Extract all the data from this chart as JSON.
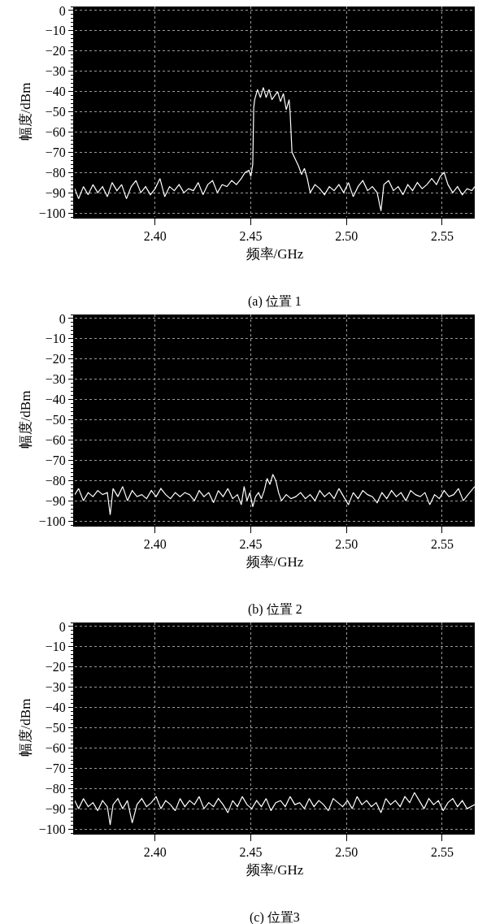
{
  "chart_data": [
    {
      "type": "line",
      "xlabel": "频率/GHz",
      "ylabel": "幅度/dBm",
      "annotations": [
        "(a) 位置 1"
      ],
      "xlim": [
        2.358,
        2.567
      ],
      "ylim": [
        -102,
        2
      ],
      "xticks": [
        {
          "value": 2.4,
          "label": "2.40"
        },
        {
          "value": 2.45,
          "label": "2.45"
        },
        {
          "value": 2.5,
          "label": "2.50"
        },
        {
          "value": 2.55,
          "label": "2.55"
        }
      ],
      "yticks": [
        0,
        -10,
        -20,
        -30,
        -40,
        -50,
        -60,
        -70,
        -80,
        -90,
        -100
      ],
      "grid": true,
      "x": [
        2.358,
        2.36,
        2.3625,
        2.365,
        2.3675,
        2.37,
        2.3725,
        2.375,
        2.3775,
        2.38,
        2.3825,
        2.385,
        2.3875,
        2.39,
        2.3925,
        2.395,
        2.3975,
        2.4,
        2.4025,
        2.405,
        2.4075,
        2.41,
        2.4125,
        2.415,
        2.4175,
        2.42,
        2.4225,
        2.425,
        2.4275,
        2.43,
        2.4325,
        2.435,
        2.4375,
        2.44,
        2.4425,
        2.445,
        2.447,
        2.449,
        2.45,
        2.451,
        2.4515,
        2.452,
        2.4535,
        2.455,
        2.4565,
        2.458,
        2.4595,
        2.461,
        2.4625,
        2.464,
        2.4655,
        2.467,
        2.4685,
        2.47,
        2.4705,
        2.4715,
        2.473,
        2.475,
        2.4765,
        2.478,
        2.4795,
        2.481,
        2.4835,
        2.486,
        2.4885,
        2.491,
        2.4935,
        2.496,
        2.4985,
        2.501,
        2.5035,
        2.506,
        2.5085,
        2.511,
        2.5135,
        2.516,
        2.518,
        2.5195,
        2.522,
        2.5245,
        2.527,
        2.5295,
        2.532,
        2.5345,
        2.537,
        2.5395,
        2.542,
        2.5445,
        2.547,
        2.549,
        2.551,
        2.553,
        2.5555,
        2.558,
        2.5605,
        2.563,
        2.5655,
        2.567
      ],
      "series": [
        {
          "color": "#ffffff",
          "values": [
            -88,
            -93,
            -87,
            -91,
            -86,
            -90,
            -87,
            -92,
            -85,
            -89,
            -86,
            -93,
            -87,
            -84,
            -90,
            -87,
            -91,
            -88,
            -83,
            -92,
            -87,
            -89,
            -86,
            -90,
            -88,
            -89,
            -85,
            -91,
            -86,
            -84,
            -90,
            -86,
            -87,
            -84,
            -86,
            -83,
            -80,
            -79,
            -82,
            -76,
            -48,
            -44,
            -39,
            -43,
            -38,
            -43,
            -39,
            -44,
            -42,
            -40,
            -45,
            -41,
            -49,
            -44,
            -50,
            -70,
            -73,
            -77,
            -81,
            -78,
            -83,
            -90,
            -86,
            -88,
            -91,
            -87,
            -89,
            -86,
            -90,
            -85,
            -92,
            -87,
            -84,
            -89,
            -87,
            -90,
            -99,
            -86,
            -84,
            -89,
            -87,
            -91,
            -86,
            -89,
            -85,
            -88,
            -86,
            -83,
            -86,
            -82,
            -80,
            -86,
            -90,
            -87,
            -91,
            -88,
            -89,
            -87
          ]
        }
      ]
    },
    {
      "type": "line",
      "xlabel": "频率/GHz",
      "ylabel": "幅度/dBm",
      "annotations": [
        "(b) 位置 2"
      ],
      "xlim": [
        2.358,
        2.567
      ],
      "ylim": [
        -102,
        2
      ],
      "xticks": [
        {
          "value": 2.4,
          "label": "2.40"
        },
        {
          "value": 2.45,
          "label": "2.45"
        },
        {
          "value": 2.5,
          "label": "2.50"
        },
        {
          "value": 2.55,
          "label": "2.55"
        }
      ],
      "yticks": [
        0,
        -10,
        -20,
        -30,
        -40,
        -50,
        -60,
        -70,
        -80,
        -90,
        -100
      ],
      "grid": true,
      "x": [
        2.358,
        2.36,
        2.3625,
        2.365,
        2.3675,
        2.37,
        2.3725,
        2.375,
        2.3765,
        2.378,
        2.3805,
        2.383,
        2.3855,
        2.388,
        2.3905,
        2.393,
        2.3955,
        2.398,
        2.4005,
        2.403,
        2.4055,
        2.408,
        2.4105,
        2.413,
        2.4155,
        2.418,
        2.4205,
        2.423,
        2.4255,
        2.428,
        2.4305,
        2.433,
        2.4355,
        2.438,
        2.4405,
        2.443,
        2.445,
        2.4465,
        2.448,
        2.4495,
        2.451,
        2.4525,
        2.454,
        2.4555,
        2.457,
        2.4585,
        2.46,
        2.4615,
        2.463,
        2.4645,
        2.466,
        2.4685,
        2.471,
        2.4735,
        2.476,
        2.4785,
        2.481,
        2.4835,
        2.486,
        2.4885,
        2.491,
        2.4935,
        2.496,
        2.4985,
        2.501,
        2.5035,
        2.506,
        2.5085,
        2.511,
        2.5135,
        2.516,
        2.5185,
        2.521,
        2.5235,
        2.526,
        2.5285,
        2.531,
        2.5335,
        2.536,
        2.5385,
        2.541,
        2.5435,
        2.546,
        2.5485,
        2.551,
        2.5535,
        2.556,
        2.5585,
        2.561,
        2.5635,
        2.567
      ],
      "series": [
        {
          "color": "#ffffff",
          "values": [
            -87,
            -84,
            -90,
            -86,
            -88,
            -85,
            -87,
            -86,
            -97,
            -84,
            -88,
            -83,
            -90,
            -85,
            -88,
            -87,
            -89,
            -85,
            -88,
            -84,
            -87,
            -89,
            -86,
            -88,
            -86,
            -87,
            -90,
            -85,
            -88,
            -86,
            -91,
            -85,
            -88,
            -84,
            -89,
            -87,
            -92,
            -83,
            -90,
            -86,
            -93,
            -88,
            -86,
            -89,
            -85,
            -79,
            -82,
            -77,
            -80,
            -86,
            -90,
            -87,
            -89,
            -88,
            -86,
            -89,
            -87,
            -90,
            -85,
            -88,
            -86,
            -89,
            -84,
            -88,
            -92,
            -86,
            -89,
            -85,
            -87,
            -88,
            -91,
            -86,
            -89,
            -85,
            -88,
            -86,
            -90,
            -85,
            -87,
            -88,
            -86,
            -92,
            -87,
            -89,
            -85,
            -88,
            -87,
            -84,
            -90,
            -87,
            -83
          ]
        }
      ]
    },
    {
      "type": "line",
      "xlabel": "频率/GHz",
      "ylabel": "幅度/dBm",
      "annotations": [
        "(c) 位置3"
      ],
      "xlim": [
        2.358,
        2.567
      ],
      "ylim": [
        -102,
        2
      ],
      "xticks": [
        {
          "value": 2.4,
          "label": "2.40"
        },
        {
          "value": 2.45,
          "label": "2.45"
        },
        {
          "value": 2.5,
          "label": "2.50"
        },
        {
          "value": 2.55,
          "label": "2.55"
        }
      ],
      "yticks": [
        0,
        -10,
        -20,
        -30,
        -40,
        -50,
        -60,
        -70,
        -80,
        -90,
        -100
      ],
      "grid": true,
      "x": [
        2.358,
        2.36,
        2.3625,
        2.365,
        2.3675,
        2.37,
        2.3725,
        2.375,
        2.3765,
        2.378,
        2.3805,
        2.383,
        2.3855,
        2.388,
        2.3905,
        2.393,
        2.3955,
        2.398,
        2.4005,
        2.403,
        2.4055,
        2.408,
        2.4105,
        2.413,
        2.4155,
        2.418,
        2.4205,
        2.423,
        2.4255,
        2.428,
        2.4305,
        2.433,
        2.4355,
        2.438,
        2.4405,
        2.443,
        2.4455,
        2.448,
        2.4505,
        2.453,
        2.4555,
        2.458,
        2.4605,
        2.463,
        2.4655,
        2.468,
        2.4705,
        2.473,
        2.4755,
        2.478,
        2.4805,
        2.483,
        2.4855,
        2.488,
        2.4905,
        2.493,
        2.4955,
        2.498,
        2.5005,
        2.503,
        2.5055,
        2.508,
        2.5105,
        2.513,
        2.5155,
        2.518,
        2.5205,
        2.523,
        2.5255,
        2.528,
        2.5305,
        2.533,
        2.5355,
        2.538,
        2.5405,
        2.543,
        2.5455,
        2.548,
        2.5505,
        2.553,
        2.5555,
        2.558,
        2.5605,
        2.563,
        2.567
      ],
      "series": [
        {
          "color": "#ffffff",
          "values": [
            -86,
            -90,
            -85,
            -89,
            -87,
            -91,
            -86,
            -89,
            -98,
            -88,
            -85,
            -90,
            -86,
            -97,
            -88,
            -85,
            -89,
            -87,
            -84,
            -90,
            -86,
            -88,
            -91,
            -85,
            -89,
            -86,
            -88,
            -84,
            -90,
            -87,
            -89,
            -85,
            -88,
            -92,
            -86,
            -89,
            -84,
            -88,
            -90,
            -86,
            -89,
            -85,
            -91,
            -87,
            -86,
            -89,
            -84,
            -88,
            -87,
            -90,
            -85,
            -89,
            -86,
            -88,
            -91,
            -85,
            -87,
            -89,
            -86,
            -90,
            -84,
            -88,
            -86,
            -89,
            -87,
            -92,
            -85,
            -88,
            -86,
            -89,
            -84,
            -87,
            -82,
            -86,
            -90,
            -85,
            -88,
            -86,
            -91,
            -87,
            -85,
            -89,
            -86,
            -90,
            -88
          ]
        }
      ]
    }
  ]
}
